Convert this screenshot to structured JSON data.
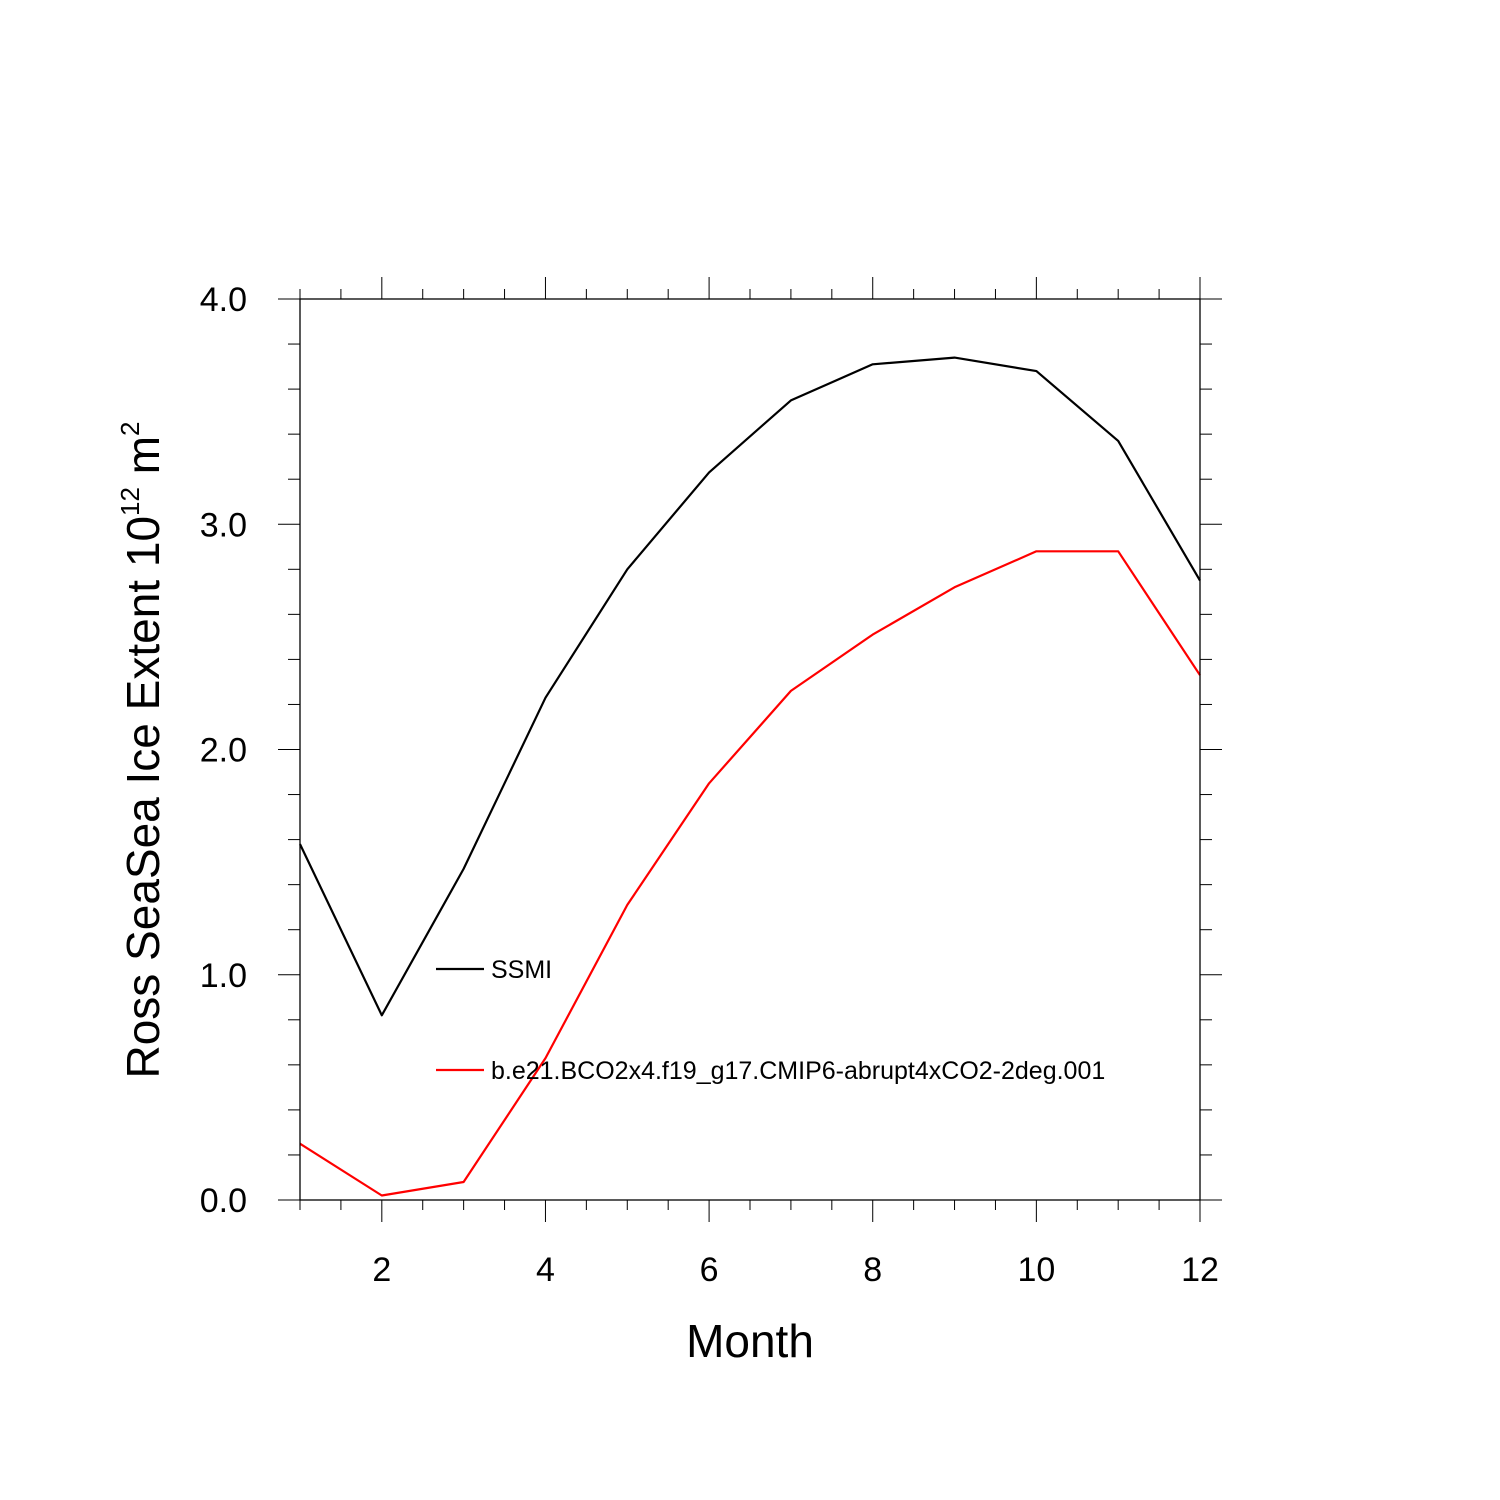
{
  "chart_data": {
    "type": "line",
    "xlabel": "Month",
    "ylabel": "Ross SeaSea Ice Extent 10",
    "ylabel_sup": "12",
    "ylabel_unit": " m",
    "ylabel_unit_sup": "2",
    "xlim": [
      1,
      12
    ],
    "ylim": [
      0.0,
      4.0
    ],
    "x_ticks": [
      2,
      4,
      6,
      8,
      10,
      12
    ],
    "x_tick_labels": [
      "2",
      "4",
      "6",
      "8",
      "10",
      "12"
    ],
    "y_ticks": [
      0.0,
      1.0,
      2.0,
      3.0,
      4.0
    ],
    "y_tick_labels": [
      "0.0",
      "1.0",
      "2.0",
      "3.0",
      "4.0"
    ],
    "grid": false,
    "legend_position": "inside-left",
    "x": [
      1,
      2,
      3,
      4,
      5,
      6,
      7,
      8,
      9,
      10,
      11,
      12
    ],
    "series": [
      {
        "name": "SSMI",
        "color": "#000000",
        "values": [
          1.58,
          0.82,
          1.47,
          2.23,
          2.8,
          3.23,
          3.55,
          3.71,
          3.74,
          3.68,
          3.37,
          2.75
        ]
      },
      {
        "name": "b.e21.BCO2x4.f19_g17.CMIP6-abrupt4xCO2-2deg.001",
        "color": "#ff0000",
        "values": [
          0.25,
          0.02,
          0.08,
          0.63,
          1.31,
          1.85,
          2.26,
          2.51,
          2.72,
          2.88,
          2.88,
          2.33
        ]
      }
    ]
  }
}
